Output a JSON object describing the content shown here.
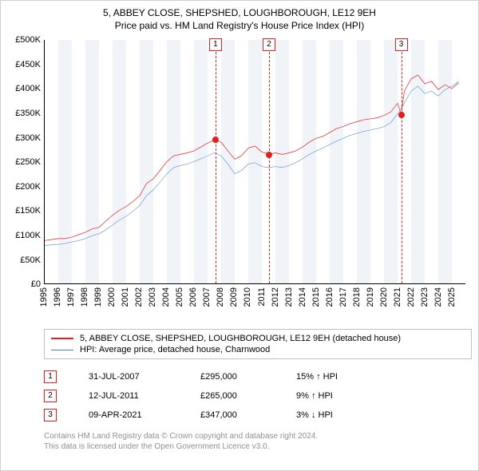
{
  "title": {
    "line1": "5, ABBEY CLOSE, SHEPSHED, LOUGHBOROUGH, LE12 9EH",
    "line2": "Price paid vs. HM Land Registry's House Price Index (HPI)",
    "fontsize": 12
  },
  "chart": {
    "type": "line",
    "background_color": "#ffffff",
    "band_color": "#f0f3f8",
    "x": {
      "min": 1995,
      "max": 2026,
      "ticks": [
        1995,
        1996,
        1997,
        1998,
        1999,
        2000,
        2001,
        2002,
        2003,
        2004,
        2005,
        2006,
        2007,
        2008,
        2009,
        2010,
        2011,
        2012,
        2013,
        2014,
        2015,
        2016,
        2017,
        2018,
        2019,
        2020,
        2021,
        2022,
        2023,
        2024,
        2025
      ],
      "label_fontsize": 11
    },
    "y": {
      "min": 0,
      "max": 500000,
      "ticks": [
        0,
        50000,
        100000,
        150000,
        200000,
        250000,
        300000,
        350000,
        400000,
        450000,
        500000
      ],
      "tick_labels": [
        "£0",
        "£50K",
        "£100K",
        "£150K",
        "£200K",
        "£250K",
        "£300K",
        "£350K",
        "£400K",
        "£450K",
        "£500K"
      ],
      "label_fontsize": 11
    },
    "series": [
      {
        "name": "price_paid",
        "label": "5, ABBEY CLOSE, SHEPSHED, LOUGHBOROUGH, LE12 9EH (detached house)",
        "color": "#e02020",
        "width": 2,
        "points": [
          [
            1995.0,
            88000
          ],
          [
            1995.5,
            90000
          ],
          [
            1996.0,
            92000
          ],
          [
            1996.5,
            92000
          ],
          [
            1997.0,
            95000
          ],
          [
            1997.5,
            100000
          ],
          [
            1998.0,
            105000
          ],
          [
            1998.5,
            112000
          ],
          [
            1999.0,
            115000
          ],
          [
            1999.5,
            128000
          ],
          [
            2000.0,
            140000
          ],
          [
            2000.5,
            150000
          ],
          [
            2001.0,
            158000
          ],
          [
            2001.5,
            168000
          ],
          [
            2002.0,
            180000
          ],
          [
            2002.5,
            205000
          ],
          [
            2003.0,
            215000
          ],
          [
            2003.5,
            232000
          ],
          [
            2004.0,
            250000
          ],
          [
            2004.5,
            262000
          ],
          [
            2005.0,
            265000
          ],
          [
            2005.5,
            268000
          ],
          [
            2006.0,
            272000
          ],
          [
            2006.5,
            280000
          ],
          [
            2007.0,
            288000
          ],
          [
            2007.58,
            295000
          ],
          [
            2008.0,
            290000
          ],
          [
            2008.5,
            272000
          ],
          [
            2009.0,
            255000
          ],
          [
            2009.5,
            262000
          ],
          [
            2010.0,
            278000
          ],
          [
            2010.5,
            282000
          ],
          [
            2011.0,
            270000
          ],
          [
            2011.53,
            265000
          ],
          [
            2012.0,
            268000
          ],
          [
            2012.5,
            265000
          ],
          [
            2013.0,
            268000
          ],
          [
            2013.5,
            272000
          ],
          [
            2014.0,
            280000
          ],
          [
            2014.5,
            290000
          ],
          [
            2015.0,
            298000
          ],
          [
            2015.5,
            302000
          ],
          [
            2016.0,
            310000
          ],
          [
            2016.5,
            318000
          ],
          [
            2017.0,
            322000
          ],
          [
            2017.5,
            328000
          ],
          [
            2018.0,
            332000
          ],
          [
            2018.5,
            336000
          ],
          [
            2019.0,
            338000
          ],
          [
            2019.5,
            340000
          ],
          [
            2020.0,
            345000
          ],
          [
            2020.5,
            352000
          ],
          [
            2021.0,
            370000
          ],
          [
            2021.27,
            347000
          ],
          [
            2021.5,
            395000
          ],
          [
            2022.0,
            420000
          ],
          [
            2022.5,
            428000
          ],
          [
            2023.0,
            410000
          ],
          [
            2023.5,
            415000
          ],
          [
            2024.0,
            398000
          ],
          [
            2024.5,
            408000
          ],
          [
            2025.0,
            400000
          ],
          [
            2025.5,
            412000
          ]
        ]
      },
      {
        "name": "hpi",
        "label": "HPI: Average price, detached house, Charnwood",
        "color": "#4a7ec8",
        "width": 1.5,
        "points": [
          [
            1995.0,
            78000
          ],
          [
            1995.5,
            79000
          ],
          [
            1996.0,
            80000
          ],
          [
            1996.5,
            82000
          ],
          [
            1997.0,
            85000
          ],
          [
            1997.5,
            88000
          ],
          [
            1998.0,
            92000
          ],
          [
            1998.5,
            98000
          ],
          [
            1999.0,
            102000
          ],
          [
            1999.5,
            110000
          ],
          [
            2000.0,
            120000
          ],
          [
            2000.5,
            130000
          ],
          [
            2001.0,
            138000
          ],
          [
            2001.5,
            148000
          ],
          [
            2002.0,
            160000
          ],
          [
            2002.5,
            180000
          ],
          [
            2003.0,
            192000
          ],
          [
            2003.5,
            208000
          ],
          [
            2004.0,
            225000
          ],
          [
            2004.5,
            238000
          ],
          [
            2005.0,
            242000
          ],
          [
            2005.5,
            245000
          ],
          [
            2006.0,
            250000
          ],
          [
            2006.5,
            256000
          ],
          [
            2007.0,
            262000
          ],
          [
            2007.5,
            268000
          ],
          [
            2008.0,
            262000
          ],
          [
            2008.5,
            245000
          ],
          [
            2009.0,
            225000
          ],
          [
            2009.5,
            232000
          ],
          [
            2010.0,
            245000
          ],
          [
            2010.5,
            248000
          ],
          [
            2011.0,
            240000
          ],
          [
            2011.5,
            238000
          ],
          [
            2012.0,
            240000
          ],
          [
            2012.5,
            238000
          ],
          [
            2013.0,
            242000
          ],
          [
            2013.5,
            248000
          ],
          [
            2014.0,
            256000
          ],
          [
            2014.5,
            265000
          ],
          [
            2015.0,
            272000
          ],
          [
            2015.5,
            278000
          ],
          [
            2016.0,
            285000
          ],
          [
            2016.5,
            292000
          ],
          [
            2017.0,
            298000
          ],
          [
            2017.5,
            304000
          ],
          [
            2018.0,
            308000
          ],
          [
            2018.5,
            312000
          ],
          [
            2019.0,
            315000
          ],
          [
            2019.5,
            318000
          ],
          [
            2020.0,
            322000
          ],
          [
            2020.5,
            330000
          ],
          [
            2021.0,
            348000
          ],
          [
            2021.5,
            370000
          ],
          [
            2022.0,
            395000
          ],
          [
            2022.5,
            405000
          ],
          [
            2023.0,
            390000
          ],
          [
            2023.5,
            395000
          ],
          [
            2024.0,
            385000
          ],
          [
            2024.5,
            398000
          ],
          [
            2025.0,
            405000
          ],
          [
            2025.5,
            415000
          ]
        ]
      }
    ],
    "markers": [
      {
        "num": "1",
        "x": 2007.58,
        "y": 295000
      },
      {
        "num": "2",
        "x": 2011.53,
        "y": 265000
      },
      {
        "num": "3",
        "x": 2021.27,
        "y": 347000
      }
    ]
  },
  "legend": {
    "items": [
      {
        "color": "#e02020",
        "label_key": "chart.series.0.label"
      },
      {
        "color": "#4a7ec8",
        "label_key": "chart.series.1.label"
      }
    ]
  },
  "marker_table": {
    "rows": [
      {
        "num": "1",
        "date": "31-JUL-2007",
        "price": "£295,000",
        "pct": "15% ↑ HPI"
      },
      {
        "num": "2",
        "date": "12-JUL-2011",
        "price": "£265,000",
        "pct": "9% ↑ HPI"
      },
      {
        "num": "3",
        "date": "09-APR-2021",
        "price": "£347,000",
        "pct": "3% ↓ HPI"
      }
    ]
  },
  "footer": {
    "line1": "Contains HM Land Registry data © Crown copyright and database right 2024.",
    "line2": "This data is licensed under the Open Government Licence v3.0."
  }
}
